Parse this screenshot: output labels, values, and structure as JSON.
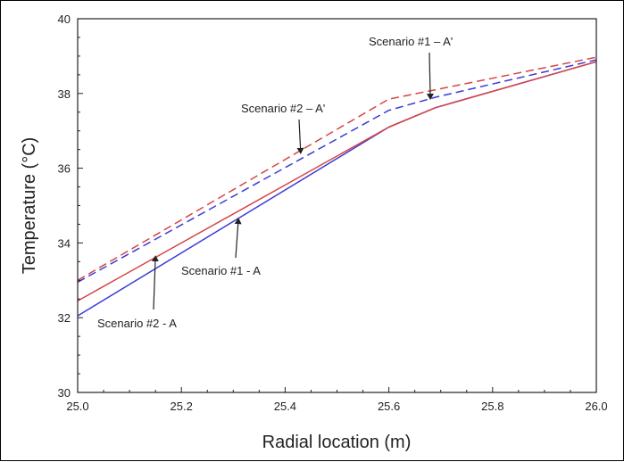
{
  "chart_data": {
    "type": "line",
    "title": "",
    "xlabel": "Radial location (m)",
    "ylabel": "Temperature (°C)",
    "xlim": [
      25.0,
      26.0
    ],
    "ylim": [
      30,
      40
    ],
    "xticks": [
      25.0,
      25.2,
      25.4,
      25.6,
      25.8,
      26.0
    ],
    "xtick_labels": [
      "25.0",
      "25.2",
      "25.4",
      "25.6",
      "25.8",
      "26.0"
    ],
    "yticks": [
      30,
      32,
      34,
      36,
      38,
      40
    ],
    "ytick_labels": [
      "30",
      "32",
      "34",
      "36",
      "38",
      "40"
    ],
    "grid": false,
    "series": [
      {
        "color": "#3b3bd6",
        "dash": "solid",
        "x": [
          25.0,
          25.6,
          25.69,
          26.0
        ],
        "y": [
          32.05,
          37.1,
          37.62,
          38.85
        ]
      },
      {
        "color": "#d64545",
        "dash": "solid",
        "x": [
          25.0,
          25.6,
          25.69,
          26.0
        ],
        "y": [
          32.45,
          37.1,
          37.62,
          38.85
        ]
      },
      {
        "color": "#3b3bd6",
        "dash": "dashed",
        "x": [
          25.0,
          25.6,
          25.69,
          26.0
        ],
        "y": [
          32.95,
          37.55,
          37.9,
          38.9
        ]
      },
      {
        "color": "#d64545",
        "dash": "dashed",
        "x": [
          25.0,
          25.6,
          25.69,
          26.0
        ],
        "y": [
          33.0,
          37.85,
          38.1,
          38.97
        ]
      }
    ],
    "annotations": [
      {
        "text": "Scenario #1 – A'",
        "arrow_to": [
          25.68,
          37.85
        ]
      },
      {
        "text": "Scenario #2 – A'",
        "arrow_to": [
          25.43,
          36.4
        ]
      },
      {
        "text": "Scenario #1 - A",
        "arrow_to": [
          25.31,
          34.65
        ]
      },
      {
        "text": "Scenario #2 - A",
        "arrow_to": [
          25.15,
          33.65
        ]
      }
    ]
  }
}
